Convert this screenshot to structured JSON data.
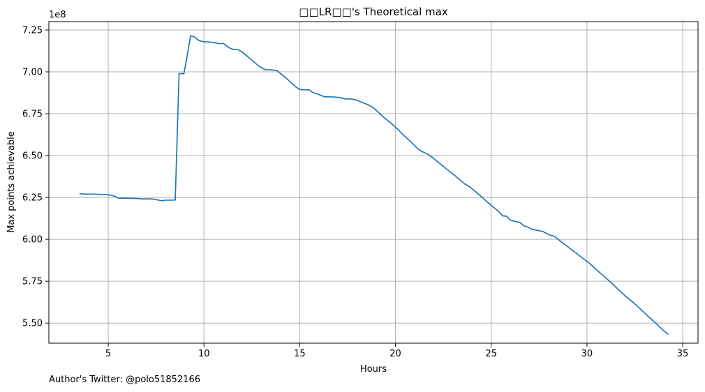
{
  "chart_data": {
    "type": "line",
    "title": "□□LR□□'s Theoretical max",
    "xlabel": "Hours",
    "ylabel": "Max points achievable",
    "y_scale_label": "1e8",
    "y_multiplier": 100000000,
    "xlim": [
      1.9,
      35.8
    ],
    "ylim": [
      5.38,
      7.3
    ],
    "xticks": [
      5,
      10,
      15,
      20,
      25,
      30,
      35
    ],
    "yticks": [
      5.5,
      5.75,
      6.0,
      6.25,
      6.5,
      6.75,
      7.0,
      7.25
    ],
    "grid": true,
    "line_color": "#1f77b4",
    "series": [
      {
        "x": [
          3.5,
          3.9,
          4.3,
          4.7,
          5.0,
          5.2,
          5.4,
          5.5,
          5.6,
          5.8,
          6.1,
          6.5,
          6.8,
          7.0,
          7.3,
          7.6,
          7.8,
          8.0,
          8.3,
          8.5,
          8.7,
          8.85,
          8.95,
          9.1,
          9.3,
          9.5,
          9.7,
          9.85,
          10.0,
          10.3,
          10.6,
          10.8,
          11.0,
          11.1,
          11.3,
          11.5,
          11.8,
          12.0,
          12.3,
          12.6,
          12.9,
          13.2,
          13.5,
          13.8,
          14.0,
          14.3,
          14.6,
          14.8,
          15.0,
          15.2,
          15.5,
          15.7,
          15.9,
          16.1,
          16.3,
          16.5,
          16.8,
          17.1,
          17.4,
          17.6,
          17.8,
          18.0,
          18.2,
          18.5,
          18.8,
          19.1,
          19.4,
          19.7,
          20.0,
          20.3,
          20.6,
          20.9,
          21.1,
          21.3,
          21.5,
          21.7,
          21.9,
          22.1,
          22.4,
          22.7,
          23.0,
          23.3,
          23.6,
          23.9,
          24.2,
          24.5,
          24.8,
          25.1,
          25.4,
          25.6,
          25.8,
          26.0,
          26.2,
          26.5,
          26.7,
          26.9,
          27.1,
          27.3,
          27.7,
          28.0,
          28.2,
          28.4,
          28.6,
          28.9,
          29.2,
          29.5,
          29.8,
          30.1,
          30.4,
          30.8,
          31.2,
          31.6,
          32.0,
          32.4,
          32.8,
          33.2,
          33.6,
          34.0,
          34.25
        ],
        "y": [
          6.272,
          6.27,
          6.27,
          6.268,
          6.266,
          6.262,
          6.255,
          6.247,
          6.245,
          6.246,
          6.245,
          6.244,
          6.241,
          6.242,
          6.241,
          6.235,
          6.23,
          6.234,
          6.234,
          6.235,
          6.99,
          6.99,
          6.988,
          7.08,
          7.215,
          7.21,
          7.19,
          7.183,
          7.18,
          7.178,
          7.173,
          7.168,
          7.17,
          7.163,
          7.145,
          7.135,
          7.132,
          7.118,
          7.09,
          7.06,
          7.032,
          7.013,
          7.012,
          7.008,
          6.99,
          6.962,
          6.93,
          6.91,
          6.895,
          6.893,
          6.893,
          6.875,
          6.87,
          6.86,
          6.851,
          6.851,
          6.85,
          6.846,
          6.838,
          6.839,
          6.836,
          6.83,
          6.82,
          6.807,
          6.79,
          6.76,
          6.727,
          6.7,
          6.67,
          6.636,
          6.603,
          6.572,
          6.548,
          6.53,
          6.518,
          6.508,
          6.492,
          6.473,
          6.445,
          6.417,
          6.39,
          6.362,
          6.332,
          6.312,
          6.283,
          6.253,
          6.223,
          6.193,
          6.165,
          6.14,
          6.138,
          6.115,
          6.108,
          6.101,
          6.081,
          6.074,
          6.062,
          6.056,
          6.047,
          6.028,
          6.022,
          6.01,
          5.99,
          5.965,
          5.938,
          5.912,
          5.885,
          5.86,
          5.828,
          5.788,
          5.748,
          5.705,
          5.662,
          5.625,
          5.583,
          5.54,
          5.498,
          5.455,
          5.433
        ]
      }
    ]
  },
  "footer_text": "Author's Twitter: @polo51852166"
}
